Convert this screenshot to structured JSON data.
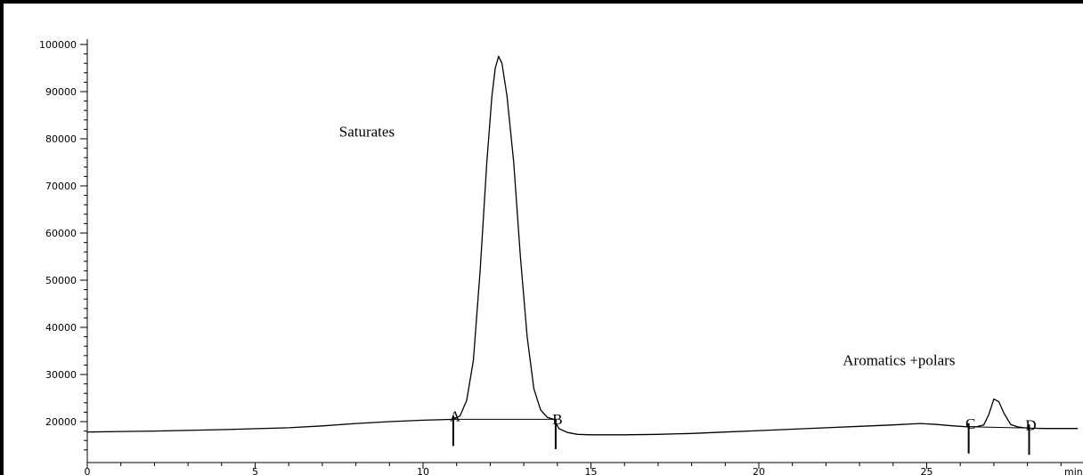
{
  "chart_data": {
    "type": "line",
    "title": "",
    "xlabel": "min",
    "ylabel": "",
    "xlim": [
      0,
      29.5
    ],
    "ylim": [
      14000,
      101000
    ],
    "x_ticks": [
      0,
      5,
      10,
      15,
      20,
      25
    ],
    "y_ticks": [
      20000,
      30000,
      40000,
      50000,
      60000,
      70000,
      80000,
      90000,
      100000
    ],
    "grid": false,
    "series": [
      {
        "x": [
          0,
          2,
          4,
          6,
          7,
          8,
          9,
          10,
          10.5,
          10.9,
          11.1,
          11.3,
          11.5,
          11.7,
          11.9,
          12.05,
          12.15,
          12.25,
          12.35,
          12.5,
          12.7,
          12.9,
          13.1,
          13.3,
          13.5,
          13.7,
          13.9,
          14.05,
          14.3,
          14.6,
          15,
          16,
          17,
          18,
          19,
          20,
          21,
          22,
          23,
          24,
          24.8,
          25.3,
          25.8,
          26.2,
          26.5,
          26.7,
          26.85,
          27.0,
          27.15,
          27.3,
          27.5,
          27.7,
          27.9,
          28.1,
          28.5,
          29.0,
          29.5
        ],
        "y": [
          17800,
          18000,
          18300,
          18700,
          19100,
          19600,
          20000,
          20300,
          20400,
          20500,
          21200,
          24500,
          33000,
          52000,
          75000,
          89000,
          95000,
          97500,
          96000,
          89000,
          75000,
          55000,
          38000,
          27000,
          22500,
          20900,
          20500,
          18500,
          17700,
          17300,
          17200,
          17200,
          17300,
          17500,
          17800,
          18100,
          18400,
          18700,
          19000,
          19300,
          19600,
          19400,
          19100,
          18900,
          18950,
          19300,
          21500,
          24800,
          24200,
          21800,
          19400,
          18900,
          18700,
          18600,
          18550,
          18550,
          18550
        ]
      }
    ],
    "baselines": [
      {
        "x": [
          10.9,
          13.95
        ],
        "y": [
          20500,
          20500
        ]
      },
      {
        "x": [
          26.4,
          28.0
        ],
        "y": [
          18900,
          18650
        ]
      }
    ],
    "markers": [
      {
        "label": "A",
        "x": 10.9
      },
      {
        "label": "B",
        "x": 13.95
      },
      {
        "label": "C",
        "x": 26.25
      },
      {
        "label": "D",
        "x": 28.05
      }
    ],
    "annotations": [
      {
        "text": "Saturates",
        "x": 7.5,
        "y": 80500
      },
      {
        "text": "Aromatics +polars",
        "x": 22.5,
        "y": 32000
      }
    ]
  }
}
